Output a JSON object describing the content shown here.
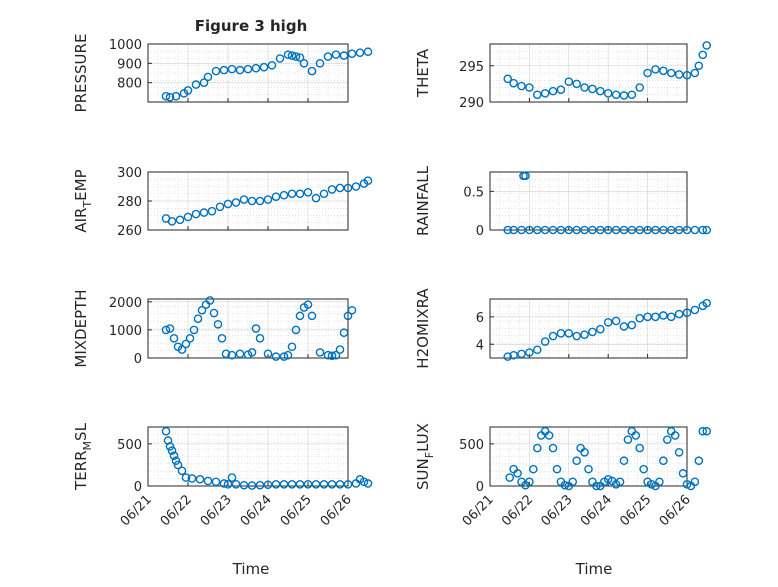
{
  "figure_title": "Figure 3 high",
  "x_axis_label": "Time",
  "x_tick_labels": [
    "06/21",
    "06/22",
    "06/23",
    "06/24",
    "06/25",
    "06/26"
  ],
  "colors": {
    "marker": "#0072BD",
    "axis": "#262626",
    "grid": "#d0d0d0"
  },
  "chart_data": [
    {
      "type": "scatter",
      "ylabel": "PRESSURE",
      "ylabel_sub": "",
      "ylim": [
        700,
        1000
      ],
      "yticks": [
        800,
        900,
        1000
      ],
      "x": [
        0.45,
        0.55,
        0.7,
        0.9,
        1.0,
        1.2,
        1.4,
        1.5,
        1.7,
        1.9,
        2.1,
        2.3,
        2.5,
        2.7,
        2.9,
        3.1,
        3.3,
        3.5,
        3.6,
        3.7,
        3.8,
        3.9,
        4.1,
        4.3,
        4.5,
        4.7,
        4.9,
        5.1,
        5.3,
        5.5
      ],
      "y": [
        730,
        725,
        730,
        745,
        760,
        790,
        800,
        830,
        860,
        865,
        870,
        865,
        870,
        875,
        880,
        890,
        925,
        945,
        940,
        935,
        930,
        900,
        860,
        900,
        935,
        945,
        940,
        950,
        955,
        960
      ]
    },
    {
      "type": "scatter",
      "ylabel": "THETA",
      "ylabel_sub": "",
      "ylim": [
        290,
        298
      ],
      "yticks": [
        290,
        295
      ],
      "x": [
        0.45,
        0.6,
        0.8,
        1.0,
        1.2,
        1.4,
        1.6,
        1.8,
        2.0,
        2.2,
        2.4,
        2.6,
        2.8,
        3.0,
        3.2,
        3.4,
        3.6,
        3.8,
        4.0,
        4.2,
        4.4,
        4.6,
        4.8,
        5.0,
        5.2,
        5.3,
        5.4,
        5.5
      ],
      "y": [
        293.2,
        292.6,
        292.2,
        292,
        291,
        291.2,
        291.5,
        291.7,
        292.8,
        292.5,
        292,
        291.8,
        291.5,
        291.2,
        291,
        290.9,
        291,
        292,
        294,
        294.5,
        294.3,
        294,
        293.8,
        293.7,
        294,
        295,
        296.5,
        297.8
      ]
    },
    {
      "type": "scatter",
      "ylabel": "AIR",
      "ylabel_sub": "T",
      "ylabel_rest": "EMP",
      "ylim": [
        260,
        300
      ],
      "yticks": [
        260,
        280,
        300
      ],
      "x": [
        0.45,
        0.6,
        0.8,
        1.0,
        1.2,
        1.4,
        1.6,
        1.8,
        2.0,
        2.2,
        2.4,
        2.6,
        2.8,
        3.0,
        3.2,
        3.4,
        3.6,
        3.8,
        4.0,
        4.2,
        4.4,
        4.6,
        4.8,
        5.0,
        5.2,
        5.4,
        5.5
      ],
      "y": [
        268,
        266,
        267,
        269,
        271,
        272,
        273,
        276,
        278,
        279,
        281,
        280,
        280,
        281,
        283,
        284,
        285,
        285,
        286,
        282,
        285,
        288,
        289,
        289,
        290,
        292,
        294
      ]
    },
    {
      "type": "scatter",
      "ylabel": "RAINFALL",
      "ylabel_sub": "",
      "ylim": [
        0,
        0.75
      ],
      "yticks": [
        0,
        0.5
      ],
      "x": [
        0.45,
        0.6,
        0.8,
        1.0,
        1.2,
        1.4,
        1.6,
        1.8,
        2.0,
        2.2,
        2.4,
        2.6,
        2.8,
        3.0,
        3.2,
        3.4,
        3.6,
        3.8,
        4.0,
        4.2,
        4.4,
        4.6,
        4.8,
        5.0,
        5.2,
        5.4,
        5.5,
        0.85,
        0.9
      ],
      "y": [
        0,
        0,
        0,
        0,
        0,
        0,
        0,
        0,
        0,
        0,
        0,
        0,
        0,
        0,
        0,
        0,
        0,
        0,
        0,
        0,
        0,
        0,
        0,
        0,
        0,
        0,
        0,
        0.7,
        0.7
      ]
    },
    {
      "type": "scatter",
      "ylabel": "MIXDEPTH",
      "ylabel_sub": "",
      "ylim": [
        0,
        2100
      ],
      "yticks": [
        0,
        1000,
        2000
      ],
      "x": [
        0.45,
        0.55,
        0.65,
        0.75,
        0.85,
        0.95,
        1.05,
        1.15,
        1.25,
        1.35,
        1.45,
        1.55,
        1.65,
        1.75,
        1.85,
        1.95,
        2.1,
        2.3,
        2.5,
        2.6,
        2.7,
        2.8,
        3.0,
        3.2,
        3.4,
        3.5,
        3.6,
        3.7,
        3.8,
        3.9,
        4.0,
        4.1,
        4.3,
        4.5,
        4.6,
        4.7,
        4.8,
        4.9,
        5.0,
        5.1
      ],
      "y": [
        1000,
        1050,
        700,
        400,
        300,
        500,
        700,
        1000,
        1400,
        1700,
        1900,
        2050,
        1600,
        1200,
        700,
        150,
        100,
        150,
        120,
        200,
        1050,
        700,
        150,
        50,
        50,
        100,
        400,
        1000,
        1500,
        1800,
        1900,
        1500,
        200,
        100,
        80,
        100,
        300,
        900,
        1500,
        1700
      ]
    },
    {
      "type": "scatter",
      "ylabel": "H2OMIXRA",
      "ylabel_sub": "",
      "ylim": [
        3,
        7.3
      ],
      "yticks": [
        4,
        6
      ],
      "x": [
        0.45,
        0.6,
        0.8,
        1.0,
        1.2,
        1.4,
        1.6,
        1.8,
        2.0,
        2.2,
        2.4,
        2.6,
        2.8,
        3.0,
        3.2,
        3.4,
        3.6,
        3.8,
        4.0,
        4.2,
        4.4,
        4.6,
        4.8,
        5.0,
        5.2,
        5.4,
        5.5
      ],
      "y": [
        3.1,
        3.2,
        3.3,
        3.4,
        3.6,
        4.2,
        4.6,
        4.8,
        4.8,
        4.6,
        4.7,
        4.9,
        5.1,
        5.6,
        5.7,
        5.3,
        5.4,
        5.9,
        6.0,
        6.0,
        6.1,
        6.0,
        6.2,
        6.3,
        6.5,
        6.8,
        7.0
      ]
    },
    {
      "type": "scatter",
      "ylabel": "TERR",
      "ylabel_sub": "M",
      "ylabel_rest": "SL",
      "ylim": [
        0,
        700
      ],
      "yticks": [
        0,
        500
      ],
      "x": [
        0.45,
        0.5,
        0.55,
        0.6,
        0.65,
        0.7,
        0.75,
        0.85,
        0.95,
        1.1,
        1.3,
        1.5,
        1.7,
        1.9,
        2.0,
        2.1,
        2.2,
        2.4,
        2.6,
        2.8,
        3.0,
        3.2,
        3.4,
        3.6,
        3.8,
        4.0,
        4.2,
        4.4,
        4.6,
        4.8,
        5.0,
        5.2,
        5.3,
        5.4,
        5.5
      ],
      "y": [
        650,
        540,
        470,
        420,
        360,
        300,
        250,
        180,
        100,
        90,
        80,
        60,
        50,
        30,
        20,
        100,
        20,
        10,
        5,
        10,
        15,
        20,
        20,
        20,
        20,
        20,
        20,
        20,
        20,
        20,
        20,
        30,
        80,
        50,
        30
      ]
    },
    {
      "type": "scatter",
      "ylabel": "SUN",
      "ylabel_sub": "F",
      "ylabel_rest": "LUX",
      "ylim": [
        0,
        700
      ],
      "yticks": [
        0,
        500
      ],
      "x": [
        0.5,
        0.6,
        0.7,
        0.8,
        0.9,
        1.0,
        1.1,
        1.2,
        1.3,
        1.4,
        1.5,
        1.6,
        1.7,
        1.8,
        1.9,
        2.0,
        2.1,
        2.2,
        2.3,
        2.4,
        2.5,
        2.6,
        2.7,
        2.8,
        2.9,
        3.0,
        3.1,
        3.2,
        3.3,
        3.4,
        3.5,
        3.6,
        3.7,
        3.8,
        3.9,
        4.0,
        4.1,
        4.2,
        4.3,
        4.4,
        4.5,
        4.6,
        4.7,
        4.8,
        4.9,
        5.0,
        5.1,
        5.2,
        5.3,
        5.4,
        5.5
      ],
      "y": [
        100,
        200,
        150,
        50,
        10,
        50,
        200,
        450,
        600,
        650,
        600,
        450,
        200,
        50,
        10,
        0,
        50,
        300,
        450,
        400,
        200,
        50,
        0,
        0,
        50,
        80,
        60,
        20,
        50,
        300,
        550,
        650,
        600,
        450,
        200,
        50,
        20,
        0,
        50,
        300,
        550,
        650,
        600,
        400,
        150,
        20,
        0,
        50,
        300,
        650,
        650
      ]
    }
  ]
}
